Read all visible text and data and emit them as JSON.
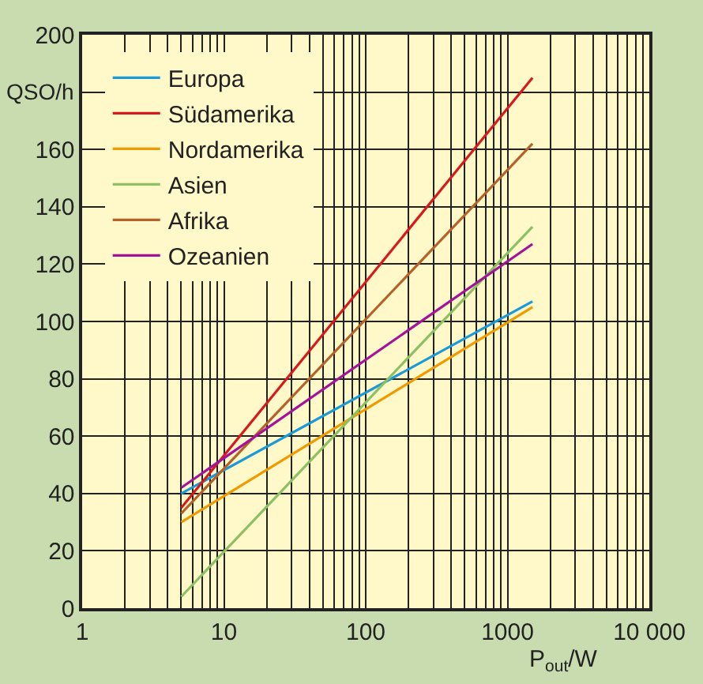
{
  "chart_data": {
    "type": "line",
    "xlabel": "P$_{out}$/W",
    "ylabel": "QSO/h",
    "log": "x",
    "grid": true,
    "legend": "top left",
    "line_style": "solid",
    "marker": "none",
    "xlim": [
      1,
      10000
    ],
    "xticks": [
      1,
      10,
      100,
      1000,
      {
        "value": 10000,
        "label": "10 000"
      }
    ],
    "ylim": [
      0,
      200
    ],
    "yticks": [
      0,
      20,
      40,
      60,
      80,
      100,
      120,
      140,
      160,
      {
        "value": 180,
        "label": null
      },
      200
    ],
    "x": [
      5,
      1500
    ],
    "series": [
      {
        "name": "Europa",
        "color": "#1a9ad6",
        "values": [
          40,
          107
        ]
      },
      {
        "name": "Südamerika",
        "color": "#d7191c",
        "values": [
          35,
          185
        ]
      },
      {
        "name": "Nordamerika",
        "color": "#ee9a00",
        "values": [
          30,
          105
        ]
      },
      {
        "name": "Asien",
        "color": "#8cc063",
        "values": [
          4,
          133
        ]
      },
      {
        "name": "Afrika",
        "color": "#b5622a",
        "values": [
          33,
          162
        ]
      },
      {
        "name": "Ozeanien",
        "color": "#a3139a",
        "values": [
          42,
          127
        ]
      }
    ]
  }
}
